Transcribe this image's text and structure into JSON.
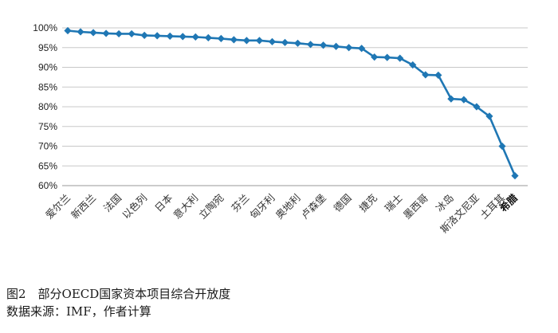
{
  "chart_data": {
    "type": "line",
    "title": "",
    "xlabel": "",
    "ylabel": "",
    "ylim": [
      60,
      100
    ],
    "y_ticks": [
      "60%",
      "65%",
      "70%",
      "75%",
      "80%",
      "85%",
      "90%",
      "95%",
      "100%"
    ],
    "grid": true,
    "legend": "none",
    "series_color": "#1f77b4",
    "categories": [
      "爱尔兰",
      "",
      "新西兰",
      "",
      "法国",
      "",
      "以色列",
      "",
      "日本",
      "",
      "意大利",
      "",
      "立陶宛",
      "",
      "芬兰",
      "",
      "匈牙利",
      "",
      "奥地利",
      "",
      "卢森堡",
      "",
      "德国",
      "",
      "捷克",
      "",
      "瑞士",
      "",
      "墨西哥",
      "",
      "冰岛",
      "",
      "斯洛文尼亚",
      "",
      "土耳其",
      "希腊"
    ],
    "bold_categories": [
      "希腊"
    ],
    "values": [
      99.3,
      99.0,
      98.8,
      98.6,
      98.5,
      98.5,
      98.1,
      98.0,
      97.9,
      97.8,
      97.7,
      97.5,
      97.3,
      97.0,
      96.8,
      96.8,
      96.5,
      96.3,
      96.1,
      95.8,
      95.6,
      95.3,
      95.0,
      94.8,
      92.6,
      92.5,
      92.3,
      90.6,
      88.1,
      88.0,
      82.0,
      81.8,
      80.0,
      77.6,
      70.0,
      62.5
    ]
  },
  "caption": {
    "title": "图2　部分OECD国家资本项目综合开放度",
    "source": "数据来源：IMF，作者计算"
  }
}
